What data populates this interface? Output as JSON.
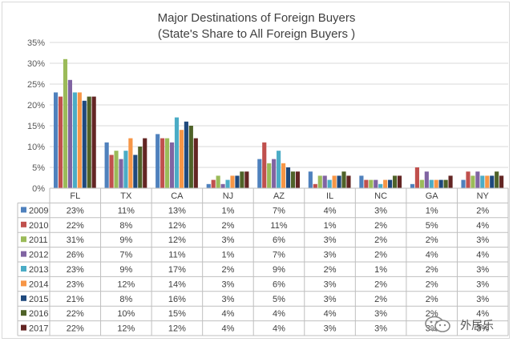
{
  "chart_data": {
    "type": "bar",
    "title": "Major Destinations of Foreign Buyers",
    "subtitle": "(State's Share to All Foreign Buyers )",
    "categories": [
      "FL",
      "TX",
      "CA",
      "NJ",
      "AZ",
      "IL",
      "NC",
      "GA",
      "NY"
    ],
    "ylim": [
      0,
      35
    ],
    "yticks": [
      "0%",
      "5%",
      "10%",
      "15%",
      "20%",
      "25%",
      "30%",
      "35%"
    ],
    "grid": true,
    "legend": "data-table",
    "series": [
      {
        "name": "2009",
        "color": "#4F81BD",
        "values": [
          23,
          11,
          13,
          1,
          7,
          4,
          3,
          1,
          2
        ],
        "labels": [
          "23%",
          "11%",
          "13%",
          "1%",
          "7%",
          "4%",
          "3%",
          "1%",
          "2%"
        ]
      },
      {
        "name": "2010",
        "color": "#C0504D",
        "values": [
          22,
          8,
          12,
          2,
          11,
          1,
          2,
          5,
          4
        ],
        "labels": [
          "22%",
          "8%",
          "12%",
          "2%",
          "11%",
          "1%",
          "2%",
          "5%",
          "4%"
        ]
      },
      {
        "name": "2011",
        "color": "#9BBB59",
        "values": [
          31,
          9,
          12,
          3,
          6,
          3,
          2,
          2,
          3
        ],
        "labels": [
          "31%",
          "9%",
          "12%",
          "3%",
          "6%",
          "3%",
          "2%",
          "2%",
          "3%"
        ]
      },
      {
        "name": "2012",
        "color": "#8064A2",
        "values": [
          26,
          7,
          11,
          1,
          7,
          3,
          2,
          4,
          4
        ],
        "labels": [
          "26%",
          "7%",
          "11%",
          "1%",
          "7%",
          "3%",
          "2%",
          "4%",
          "4%"
        ]
      },
      {
        "name": "2013",
        "color": "#4BACC6",
        "values": [
          23,
          9,
          17,
          2,
          9,
          2,
          1,
          2,
          3
        ],
        "labels": [
          "23%",
          "9%",
          "17%",
          "2%",
          "9%",
          "2%",
          "1%",
          "2%",
          "3%"
        ]
      },
      {
        "name": "2014",
        "color": "#F79646",
        "values": [
          23,
          12,
          14,
          3,
          6,
          3,
          2,
          2,
          3
        ],
        "labels": [
          "23%",
          "12%",
          "14%",
          "3%",
          "6%",
          "3%",
          "2%",
          "2%",
          "3%"
        ]
      },
      {
        "name": "2015",
        "color": "#1F497D",
        "values": [
          21,
          8,
          16,
          3,
          5,
          3,
          2,
          2,
          3
        ],
        "labels": [
          "21%",
          "8%",
          "16%",
          "3%",
          "5%",
          "3%",
          "2%",
          "2%",
          "3%"
        ]
      },
      {
        "name": "2016",
        "color": "#4F6228",
        "values": [
          22,
          10,
          15,
          4,
          4,
          4,
          3,
          2,
          4
        ],
        "labels": [
          "22%",
          "10%",
          "15%",
          "4%",
          "4%",
          "4%",
          "3%",
          "2%",
          "4%"
        ]
      },
      {
        "name": "2017",
        "color": "#632523",
        "values": [
          22,
          12,
          12,
          4,
          4,
          3,
          3,
          3,
          3
        ],
        "labels": [
          "22%",
          "12%",
          "12%",
          "4%",
          "4%",
          "3%",
          "3%",
          "3%",
          "3%"
        ]
      }
    ]
  },
  "watermark": {
    "text": "外居乐",
    "icon": "wechat-icon"
  }
}
